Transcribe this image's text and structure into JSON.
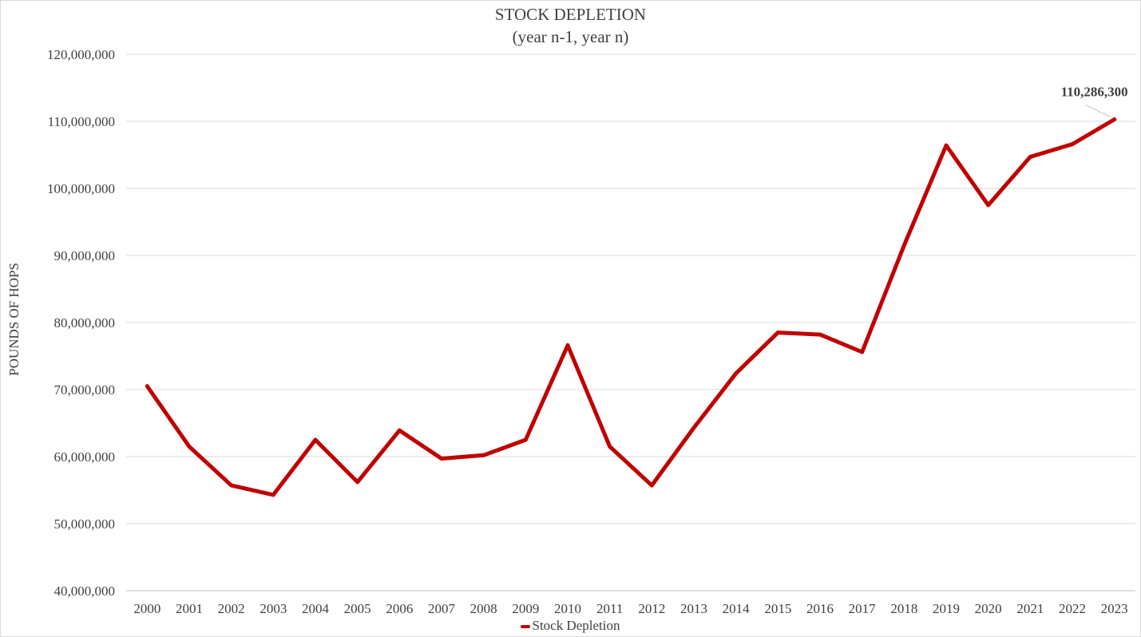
{
  "chart_data": {
    "type": "line",
    "title": "STOCK DEPLETION",
    "subtitle": "(year n-1, year n)",
    "xlabel": "",
    "ylabel": "POUNDS OF HOPS",
    "categories": [
      "2000",
      "2001",
      "2002",
      "2003",
      "2004",
      "2005",
      "2006",
      "2007",
      "2008",
      "2009",
      "2010",
      "2011",
      "2012",
      "2013",
      "2014",
      "2015",
      "2016",
      "2017",
      "2018",
      "2019",
      "2020",
      "2021",
      "2022",
      "2023"
    ],
    "series": [
      {
        "name": "Stock Depletion",
        "color": "#c00000",
        "values": [
          70500000,
          61500000,
          55700000,
          54300000,
          62500000,
          56200000,
          63900000,
          59700000,
          60200000,
          62500000,
          76600000,
          61500000,
          55700000,
          64300000,
          72400000,
          78500000,
          78200000,
          75600000,
          91500000,
          106400000,
          97500000,
          104700000,
          106600000,
          110286300
        ]
      }
    ],
    "ylim": [
      40000000,
      120000000
    ],
    "yticks": [
      "40,000,000",
      "50,000,000",
      "60,000,000",
      "70,000,000",
      "80,000,000",
      "90,000,000",
      "100,000,000",
      "110,000,000",
      "120,000,000"
    ],
    "grid": true,
    "legend_position": "bottom",
    "annotations": [
      {
        "text": "110,286,300",
        "category": "2023"
      }
    ]
  }
}
